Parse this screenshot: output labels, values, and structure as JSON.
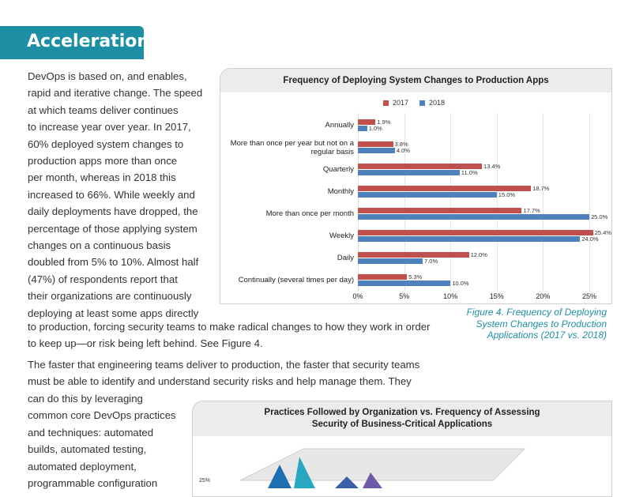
{
  "section": {
    "title": "Acceleration"
  },
  "body": {
    "col_lines": [
      "DevOps is based on, and enables,",
      "rapid and iterative change. The speed",
      "at which teams deliver continues",
      "to increase year over year. In 2017,",
      "60% deployed system changes to",
      "production apps more than once",
      "per month, whereas in 2018 this",
      "increased to 66%. While weekly and",
      "daily deployments have dropped, the",
      "percentage of those applying system",
      "changes on a continuous basis",
      "doubled from 5% to 10%. Almost half",
      "(47%) of respondents report that",
      "their organizations are continuously",
      "deploying at least some apps directly"
    ],
    "wide_lines": [
      "to production, forcing security teams to make radical changes to how they work in order",
      "to keep up—or risk being left behind. See Figure 4."
    ],
    "para2_lines": [
      "The faster that engineering teams deliver to production, the faster that security teams",
      "must be able to identify and understand security risks and help manage them. They"
    ],
    "para2_col_lines": [
      "can do this by leveraging",
      "common core DevOps practices",
      "and techniques: automated",
      "builds, automated testing,",
      "automated deployment,",
      "programmable configuration"
    ]
  },
  "figure4": {
    "caption_lines": [
      "Figure 4. Frequency of Deploying",
      "System Changes to Production",
      "Applications (2017 vs. 2018)"
    ]
  },
  "chart_data": [
    {
      "type": "bar",
      "orientation": "horizontal",
      "title": "Frequency of Deploying System Changes to Production Apps",
      "categories": [
        "Annually",
        "More than once per year but not on a regular basis",
        "Quarterly",
        "Monthly",
        "More than once per month",
        "Weekly",
        "Daily",
        "Continually (several times per day)"
      ],
      "category_lines": [
        [
          "Annually"
        ],
        [
          "More than once per year but not on a",
          "regular basis"
        ],
        [
          "Quarterly"
        ],
        [
          "Monthly"
        ],
        [
          "More than once per month"
        ],
        [
          "Weekly"
        ],
        [
          "Daily"
        ],
        [
          "Continually (several times per day)"
        ]
      ],
      "series": [
        {
          "name": "2017",
          "color": "#c0504d",
          "values": [
            1.9,
            3.8,
            13.4,
            18.7,
            17.7,
            25.4,
            12.0,
            5.3
          ]
        },
        {
          "name": "2018",
          "color": "#4f81bd",
          "values": [
            1.0,
            4.0,
            11.0,
            15.0,
            25.0,
            24.0,
            7.0,
            10.0
          ]
        }
      ],
      "xlim": [
        0,
        25
      ],
      "xticks": [
        "0%",
        "5%",
        "10%",
        "15%",
        "20%",
        "25%"
      ],
      "legend": "top",
      "grid": true
    },
    {
      "type": "bar",
      "title": "Practices Followed by Organization vs. Frequency of Assessing Security of Business-Critical Applications",
      "title_lines": [
        "Practices Followed by Organization vs. Frequency of Assessing",
        "Security of Business-Critical Applications"
      ],
      "yticks_visible": [
        "25%"
      ]
    }
  ]
}
